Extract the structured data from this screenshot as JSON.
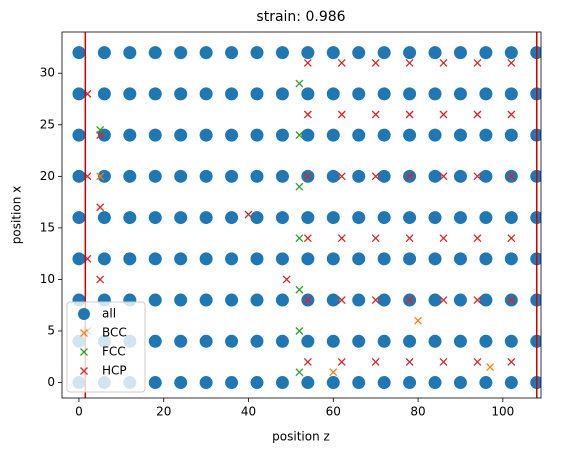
{
  "chart_data": {
    "type": "scatter",
    "title": "strain: 0.986",
    "xlabel": "position z",
    "ylabel": "position x",
    "xlim": [
      -4,
      109
    ],
    "ylim": [
      -1.5,
      34
    ],
    "xticks": [
      0,
      20,
      40,
      60,
      80,
      100
    ],
    "yticks": [
      0,
      5,
      10,
      15,
      20,
      25,
      30
    ],
    "legend": "lower left",
    "vlines": {
      "color": "#cc0000",
      "values": [
        1.5,
        108
      ]
    },
    "series": [
      {
        "name": "all",
        "color": "#1f77b4",
        "marker": "o",
        "x": [
          0,
          6,
          12,
          18,
          24,
          30,
          36,
          42,
          48,
          54,
          60,
          66,
          72,
          78,
          84,
          90,
          96,
          102,
          108,
          0,
          6,
          12,
          18,
          24,
          30,
          36,
          42,
          48,
          54,
          60,
          66,
          72,
          78,
          84,
          90,
          96,
          102,
          108,
          0,
          6,
          12,
          18,
          24,
          30,
          36,
          42,
          48,
          54,
          60,
          66,
          72,
          78,
          84,
          90,
          96,
          102,
          108,
          0,
          6,
          12,
          18,
          24,
          30,
          36,
          42,
          48,
          54,
          60,
          66,
          72,
          78,
          84,
          90,
          96,
          102,
          108,
          0,
          6,
          12,
          18,
          24,
          30,
          36,
          42,
          48,
          54,
          60,
          66,
          72,
          78,
          84,
          90,
          96,
          102,
          108,
          0,
          6,
          12,
          18,
          24,
          30,
          36,
          42,
          48,
          54,
          60,
          66,
          72,
          78,
          84,
          90,
          96,
          102,
          108,
          0,
          6,
          12,
          18,
          24,
          30,
          36,
          42,
          48,
          54,
          60,
          66,
          72,
          78,
          84,
          90,
          96,
          102,
          108,
          0,
          6,
          12,
          18,
          24,
          30,
          36,
          42,
          48,
          54,
          60,
          66,
          72,
          78,
          84,
          90,
          96,
          102,
          108,
          0,
          6,
          12,
          18,
          24,
          30,
          36,
          42,
          48,
          54,
          60,
          66,
          72,
          78,
          84,
          90,
          96,
          102,
          108
        ],
        "values": [
          0,
          0,
          0,
          0,
          0,
          0,
          0,
          0,
          0,
          0,
          0,
          0,
          0,
          0,
          0,
          0,
          0,
          0,
          0,
          4,
          4,
          4,
          4,
          4,
          4,
          4,
          4,
          4,
          4,
          4,
          4,
          4,
          4,
          4,
          4,
          4,
          4,
          4,
          8,
          8,
          8,
          8,
          8,
          8,
          8,
          8,
          8,
          8,
          8,
          8,
          8,
          8,
          8,
          8,
          8,
          8,
          8,
          12,
          12,
          12,
          12,
          12,
          12,
          12,
          12,
          12,
          12,
          12,
          12,
          12,
          12,
          12,
          12,
          12,
          12,
          12,
          16,
          16,
          16,
          16,
          16,
          16,
          16,
          16,
          16,
          16,
          16,
          16,
          16,
          16,
          16,
          16,
          16,
          16,
          16,
          20,
          20,
          20,
          20,
          20,
          20,
          20,
          20,
          20,
          20,
          20,
          20,
          20,
          20,
          20,
          20,
          20,
          20,
          20,
          24,
          24,
          24,
          24,
          24,
          24,
          24,
          24,
          24,
          24,
          24,
          24,
          24,
          24,
          24,
          24,
          24,
          24,
          24,
          28,
          28,
          28,
          28,
          28,
          28,
          28,
          28,
          28,
          28,
          28,
          28,
          28,
          28,
          28,
          28,
          28,
          28,
          28,
          32,
          32,
          32,
          32,
          32,
          32,
          32,
          32,
          32,
          32,
          32,
          32,
          32,
          32,
          32,
          32,
          32,
          32,
          32
        ]
      },
      {
        "name": "BCC",
        "color": "#ff7f0e",
        "marker": "x",
        "x": [
          5,
          60,
          80,
          97
        ],
        "values": [
          20,
          1,
          6,
          1.5
        ]
      },
      {
        "name": "FCC",
        "color": "#2ca02c",
        "marker": "x",
        "x": [
          52,
          52,
          52,
          52,
          52,
          52,
          52,
          5
        ],
        "values": [
          1,
          5,
          9,
          14,
          19,
          24,
          29,
          24.5
        ]
      },
      {
        "name": "HCP",
        "color": "#d62728",
        "marker": "x",
        "x": [
          54,
          62,
          70,
          78,
          86,
          94,
          102,
          54,
          62,
          70,
          78,
          86,
          94,
          102,
          54,
          62,
          70,
          78,
          86,
          94,
          102,
          54,
          62,
          70,
          78,
          86,
          94,
          102,
          54,
          62,
          70,
          78,
          86,
          94,
          102,
          54,
          62,
          70,
          78,
          86,
          94,
          102,
          2,
          2,
          2,
          2,
          5,
          5,
          5,
          40,
          49
        ],
        "values": [
          2,
          2,
          2,
          2,
          2,
          2,
          2,
          8,
          8,
          8,
          8,
          8,
          8,
          8,
          14,
          14,
          14,
          14,
          14,
          14,
          14,
          20,
          20,
          20,
          20,
          20,
          20,
          20,
          26,
          26,
          26,
          26,
          26,
          26,
          26,
          31,
          31,
          31,
          31,
          31,
          31,
          31,
          5,
          12,
          20,
          28,
          10,
          17,
          24,
          16.3,
          10
        ]
      }
    ]
  }
}
